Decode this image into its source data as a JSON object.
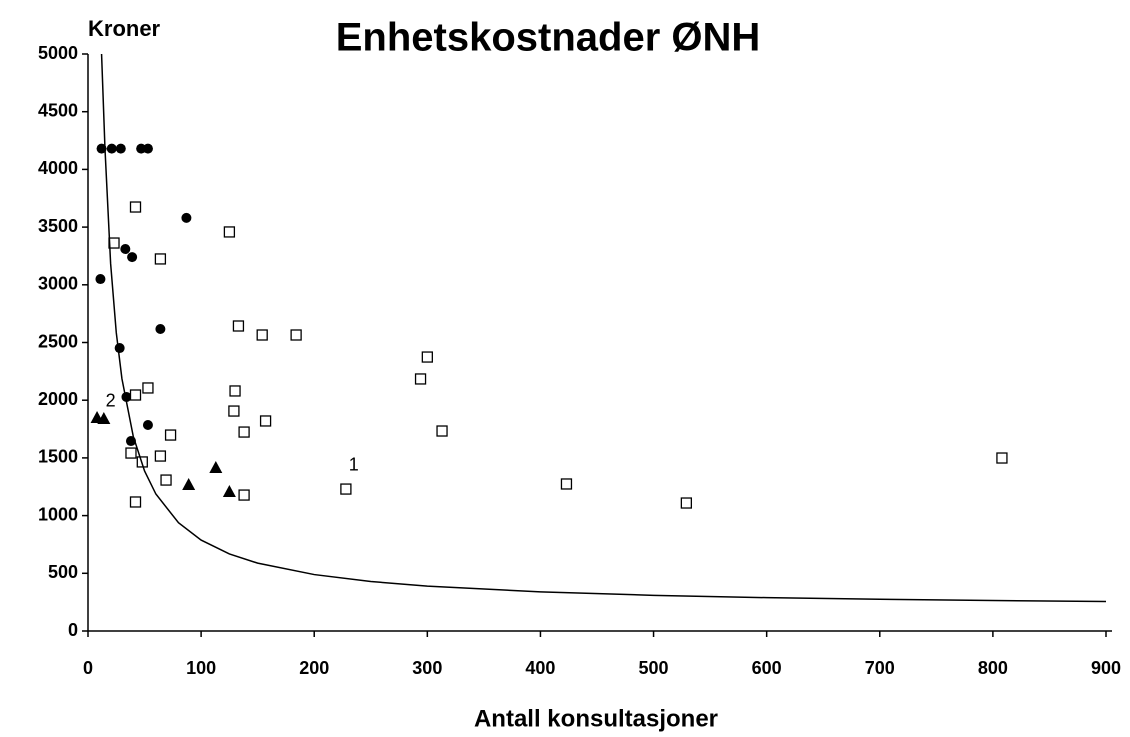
{
  "chart_data": {
    "type": "scatter",
    "title": "Enhetskostnader ØNH",
    "x_label": "Antall konsultasjoner",
    "y_label": "Kroner",
    "xlim": [
      0,
      900
    ],
    "ylim": [
      0,
      5000
    ],
    "xticks": [
      0,
      100,
      200,
      300,
      400,
      500,
      600,
      700,
      800,
      900
    ],
    "yticks": [
      0,
      500,
      1000,
      1500,
      2000,
      2500,
      3000,
      3500,
      4000,
      4500,
      5000
    ],
    "grid": false,
    "series": [
      {
        "marker": "circle",
        "color": "#000000",
        "x": [
          12,
          21,
          29,
          47,
          53,
          11,
          87,
          33,
          39,
          64,
          28,
          34,
          53,
          38
        ],
        "values": [
          4180,
          4180,
          4180,
          4180,
          4180,
          3050,
          3580,
          3310,
          3240,
          2617,
          2452,
          2028,
          1785,
          1646
        ]
      },
      {
        "marker": "square",
        "color": "#000000",
        "x": [
          42,
          23,
          64,
          125,
          133,
          154,
          184,
          300,
          294,
          313,
          130,
          53,
          42,
          129,
          157,
          138,
          73,
          64,
          38,
          48,
          69,
          42,
          138,
          228,
          423,
          529,
          808
        ],
        "values": [
          3674,
          3362,
          3224,
          3458,
          2643,
          2565,
          2565,
          2374,
          2184,
          1733,
          2080,
          2106,
          2045,
          1906,
          1820,
          1724,
          1698,
          1516,
          1542,
          1465,
          1308,
          1118,
          1178,
          1230,
          1274,
          1109,
          1499
        ]
      },
      {
        "marker": "triangle",
        "color": "#000000",
        "x": [
          8,
          14,
          89,
          113,
          125
        ],
        "values": [
          1846,
          1837,
          1265,
          1412,
          1205
        ]
      },
      {
        "marker": "line",
        "color": "#000000",
        "x": [
          12,
          15,
          20,
          25,
          30,
          40,
          50,
          60,
          80,
          100,
          125,
          150,
          200,
          250,
          300,
          400,
          500,
          600,
          700,
          800,
          900
        ],
        "values": [
          5000,
          4182,
          3184,
          2585,
          2186,
          1687,
          1387,
          1187,
          938,
          788,
          668,
          588,
          489,
          429,
          389,
          339,
          309,
          289,
          275,
          264,
          256
        ]
      }
    ],
    "annotations": [
      {
        "text": "1",
        "x": 235,
        "y": 1430
      },
      {
        "text": "2",
        "x": 20,
        "y": 1985
      }
    ]
  }
}
